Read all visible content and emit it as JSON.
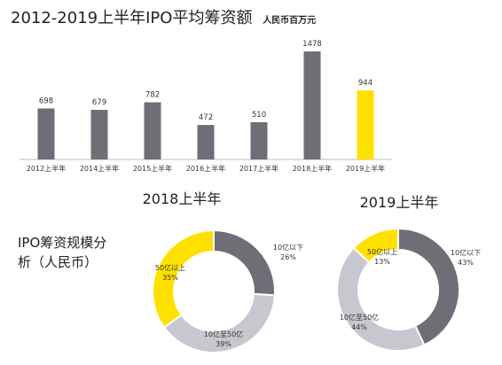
{
  "title": "2012-2019上半年IPO平均筹资额",
  "unit": "人民币百万元",
  "section_label_lines": [
    "IPO筹资规模分",
    "析（人民币）"
  ],
  "colors": {
    "bar": "#6f6d75",
    "highlight": "#ffe100",
    "donut_small": "#6f6d75",
    "donut_mid": "#c7c7cf",
    "donut_large": "#ffe100"
  },
  "chart_data": [
    {
      "type": "bar",
      "title": "2012-2019上半年IPO平均筹资额",
      "unit": "人民币百万元",
      "categories": [
        "2012上半年",
        "2014上半年",
        "2015上半年",
        "2016上半年",
        "2017上半年",
        "2018上半年",
        "2019上半年"
      ],
      "values": [
        698,
        679,
        782,
        472,
        510,
        1478,
        944
      ],
      "value_labels": [
        "698",
        "679",
        "782",
        "472",
        "510",
        "1478",
        "944"
      ],
      "highlight_index": 6,
      "ylim": [
        0,
        1600
      ],
      "grid": false
    },
    {
      "type": "pie",
      "title": "2018上半年",
      "slices": [
        {
          "label_lines": [
            "10亿以下",
            "26%"
          ],
          "value": 26,
          "color_key": "donut_small"
        },
        {
          "label_lines": [
            "10亿至50亿",
            "39%"
          ],
          "value": 39,
          "color_key": "donut_mid"
        },
        {
          "label_lines": [
            "50亿以上",
            "35%"
          ],
          "value": 35,
          "color_key": "donut_large"
        }
      ]
    },
    {
      "type": "pie",
      "title": "2019上半年",
      "slices": [
        {
          "label_lines": [
            "10亿以下",
            "43%"
          ],
          "value": 43,
          "color_key": "donut_small"
        },
        {
          "label_lines": [
            "10亿至50亿",
            "44%"
          ],
          "value": 44,
          "color_key": "donut_mid"
        },
        {
          "label_lines": [
            "50亿以上",
            "13%"
          ],
          "value": 13,
          "color_key": "donut_large"
        }
      ]
    }
  ]
}
